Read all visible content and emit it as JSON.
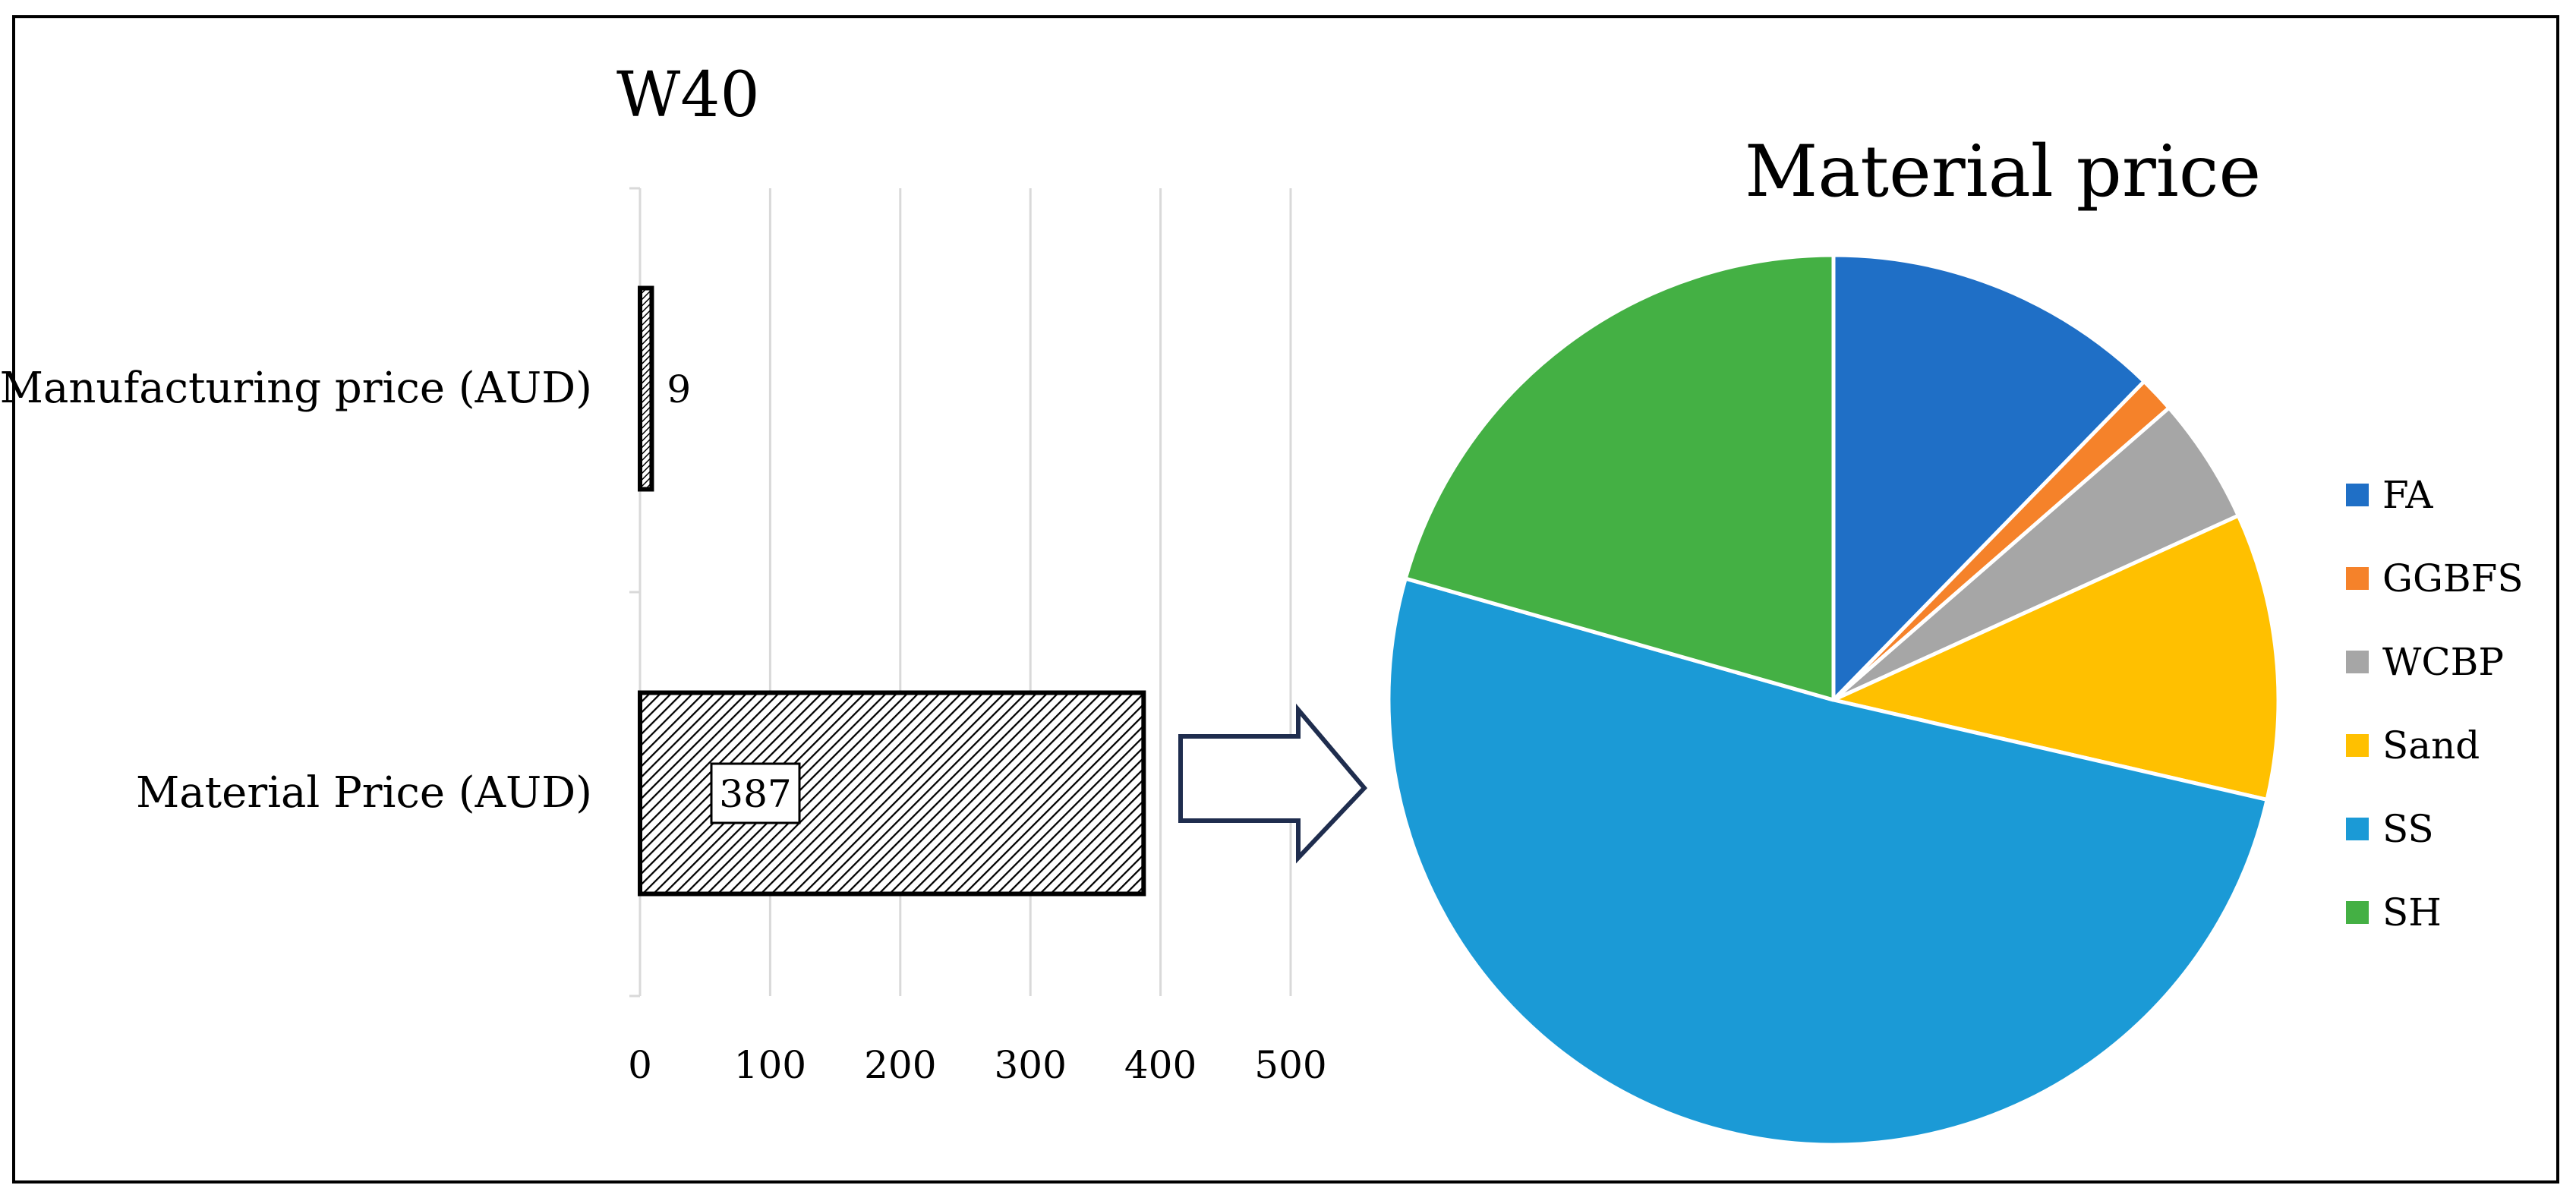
{
  "chart_data": [
    {
      "type": "bar",
      "orientation": "horizontal",
      "title": "W40",
      "categories": [
        "Manufacturing price (AUD)",
        "Material Price (AUD)"
      ],
      "values": [
        9,
        387
      ],
      "data_labels": [
        "9",
        "387"
      ],
      "xlim": [
        0,
        500
      ],
      "x_ticks": [
        0,
        100,
        200,
        300,
        400,
        500
      ],
      "x_tick_labels": [
        "0",
        "100",
        "200",
        "300",
        "400",
        "500"
      ],
      "grid": "vertical",
      "bar_fill": "diagonal-hatch",
      "colors": {
        "grid": "#d9d9d9",
        "bar_outline": "#000000"
      }
    },
    {
      "type": "pie",
      "title": "Material price",
      "labels": [
        "FA",
        "GGBFS",
        "WCBP",
        "Sand",
        "SS",
        "SH"
      ],
      "values": [
        12.3,
        1.3,
        4.6,
        10.4,
        50.8,
        20.6
      ],
      "colors": [
        "#1f6fc6",
        "#f5822a",
        "#a6a6a6",
        "#ffc000",
        "#1b9ad6",
        "#44b044"
      ],
      "legend_position": "right"
    }
  ]
}
